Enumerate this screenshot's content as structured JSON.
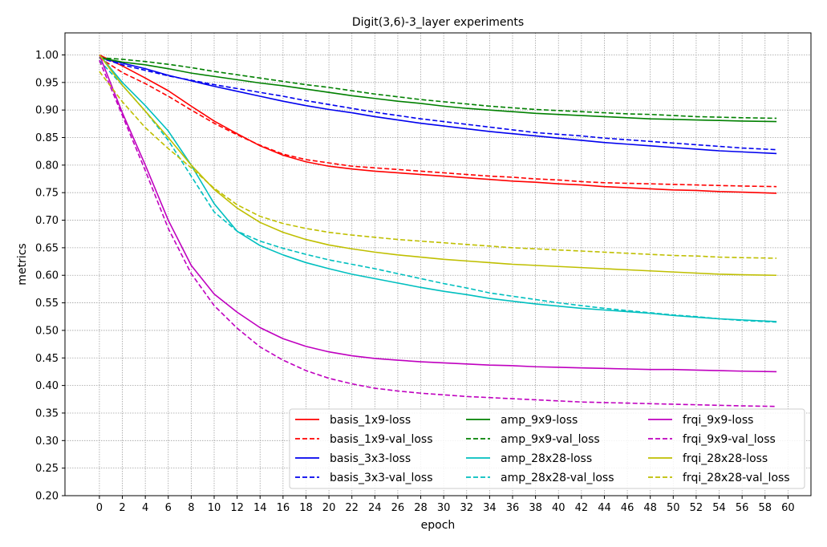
{
  "chart_data": {
    "type": "line",
    "title": "Digit(3,6)-3_layer experiments",
    "xlabel": "epoch",
    "ylabel": "metrics",
    "xlim": [
      -3,
      62
    ],
    "ylim": [
      0.2,
      1.04
    ],
    "xticks": [
      0,
      2,
      4,
      6,
      8,
      10,
      12,
      14,
      16,
      18,
      20,
      22,
      24,
      26,
      28,
      30,
      32,
      34,
      36,
      38,
      40,
      42,
      44,
      46,
      48,
      50,
      52,
      54,
      56,
      58,
      60
    ],
    "yticks": [
      "0.20",
      "0.25",
      "0.30",
      "0.35",
      "0.40",
      "0.45",
      "0.50",
      "0.55",
      "0.60",
      "0.65",
      "0.70",
      "0.75",
      "0.80",
      "0.85",
      "0.90",
      "0.95",
      "1.00"
    ],
    "grid": true,
    "legend_position": "bottom-right",
    "x": [
      0,
      2,
      4,
      6,
      8,
      10,
      12,
      14,
      16,
      18,
      20,
      22,
      24,
      26,
      28,
      30,
      32,
      34,
      36,
      38,
      40,
      42,
      44,
      46,
      48,
      50,
      52,
      54,
      56,
      59
    ],
    "series": [
      {
        "name": "basis_1x9-loss",
        "color": "#ff0000",
        "dash": "solid",
        "values": [
          1.0,
          0.98,
          0.958,
          0.935,
          0.907,
          0.88,
          0.857,
          0.835,
          0.818,
          0.806,
          0.798,
          0.793,
          0.789,
          0.786,
          0.783,
          0.78,
          0.777,
          0.774,
          0.771,
          0.769,
          0.766,
          0.764,
          0.761,
          0.759,
          0.757,
          0.755,
          0.754,
          0.752,
          0.751,
          0.749
        ]
      },
      {
        "name": "basis_1x9-val_loss",
        "color": "#ff0000",
        "dash": "dashed",
        "values": [
          0.995,
          0.968,
          0.948,
          0.925,
          0.9,
          0.876,
          0.855,
          0.836,
          0.82,
          0.81,
          0.804,
          0.798,
          0.795,
          0.792,
          0.789,
          0.786,
          0.783,
          0.78,
          0.778,
          0.775,
          0.773,
          0.77,
          0.768,
          0.767,
          0.766,
          0.765,
          0.764,
          0.763,
          0.762,
          0.761
        ]
      },
      {
        "name": "basis_3x3-loss",
        "color": "#0000ee",
        "dash": "solid",
        "values": [
          0.995,
          0.985,
          0.975,
          0.963,
          0.953,
          0.943,
          0.934,
          0.925,
          0.916,
          0.908,
          0.901,
          0.895,
          0.888,
          0.882,
          0.876,
          0.871,
          0.866,
          0.861,
          0.857,
          0.853,
          0.849,
          0.845,
          0.841,
          0.838,
          0.835,
          0.832,
          0.829,
          0.826,
          0.824,
          0.821
        ]
      },
      {
        "name": "basis_3x3-val_loss",
        "color": "#0000ee",
        "dash": "dashed",
        "values": [
          0.995,
          0.982,
          0.972,
          0.962,
          0.954,
          0.946,
          0.939,
          0.932,
          0.925,
          0.917,
          0.91,
          0.903,
          0.896,
          0.89,
          0.884,
          0.879,
          0.874,
          0.869,
          0.864,
          0.859,
          0.856,
          0.853,
          0.849,
          0.846,
          0.843,
          0.84,
          0.837,
          0.834,
          0.831,
          0.828
        ]
      },
      {
        "name": "amp_9x9-loss",
        "color": "#008000",
        "dash": "solid",
        "values": [
          0.995,
          0.987,
          0.982,
          0.975,
          0.967,
          0.961,
          0.955,
          0.949,
          0.944,
          0.938,
          0.932,
          0.926,
          0.921,
          0.916,
          0.912,
          0.907,
          0.903,
          0.9,
          0.897,
          0.894,
          0.892,
          0.89,
          0.888,
          0.886,
          0.884,
          0.883,
          0.882,
          0.881,
          0.88,
          0.879
        ]
      },
      {
        "name": "amp_9x9-val_loss",
        "color": "#008000",
        "dash": "dashed",
        "values": [
          0.995,
          0.992,
          0.988,
          0.983,
          0.977,
          0.97,
          0.964,
          0.958,
          0.952,
          0.946,
          0.941,
          0.935,
          0.929,
          0.924,
          0.919,
          0.915,
          0.911,
          0.907,
          0.904,
          0.901,
          0.899,
          0.897,
          0.895,
          0.893,
          0.892,
          0.89,
          0.888,
          0.887,
          0.886,
          0.885
        ]
      },
      {
        "name": "amp_28x28-loss",
        "color": "#00bfbf",
        "dash": "solid",
        "values": [
          1.0,
          0.95,
          0.908,
          0.862,
          0.8,
          0.73,
          0.68,
          0.654,
          0.637,
          0.623,
          0.612,
          0.602,
          0.594,
          0.586,
          0.578,
          0.571,
          0.565,
          0.558,
          0.553,
          0.548,
          0.544,
          0.54,
          0.537,
          0.534,
          0.531,
          0.527,
          0.524,
          0.521,
          0.519,
          0.516
        ]
      },
      {
        "name": "amp_28x28-val_loss",
        "color": "#00bfbf",
        "dash": "dashed",
        "values": [
          0.99,
          0.945,
          0.898,
          0.845,
          0.78,
          0.715,
          0.68,
          0.662,
          0.649,
          0.638,
          0.628,
          0.62,
          0.612,
          0.603,
          0.594,
          0.585,
          0.577,
          0.568,
          0.562,
          0.556,
          0.55,
          0.545,
          0.54,
          0.536,
          0.532,
          0.528,
          0.525,
          0.521,
          0.518,
          0.515
        ]
      },
      {
        "name": "frqi_9x9-loss",
        "color": "#bf00bf",
        "dash": "solid",
        "values": [
          1.0,
          0.895,
          0.8,
          0.7,
          0.618,
          0.566,
          0.533,
          0.505,
          0.485,
          0.471,
          0.461,
          0.454,
          0.449,
          0.446,
          0.443,
          0.441,
          0.439,
          0.437,
          0.436,
          0.434,
          0.433,
          0.432,
          0.431,
          0.43,
          0.429,
          0.429,
          0.428,
          0.427,
          0.426,
          0.425
        ]
      },
      {
        "name": "frqi_9x9-val_loss",
        "color": "#bf00bf",
        "dash": "dashed",
        "values": [
          0.99,
          0.89,
          0.79,
          0.685,
          0.603,
          0.545,
          0.504,
          0.47,
          0.446,
          0.427,
          0.413,
          0.403,
          0.395,
          0.39,
          0.386,
          0.383,
          0.38,
          0.378,
          0.376,
          0.374,
          0.372,
          0.37,
          0.369,
          0.368,
          0.367,
          0.366,
          0.365,
          0.364,
          0.363,
          0.362
        ]
      },
      {
        "name": "frqi_28x28-loss",
        "color": "#bfbf00",
        "dash": "solid",
        "values": [
          1.0,
          0.945,
          0.898,
          0.85,
          0.8,
          0.756,
          0.722,
          0.696,
          0.678,
          0.665,
          0.655,
          0.648,
          0.642,
          0.637,
          0.633,
          0.629,
          0.626,
          0.623,
          0.62,
          0.618,
          0.616,
          0.614,
          0.612,
          0.61,
          0.608,
          0.606,
          0.604,
          0.602,
          0.601,
          0.6
        ]
      },
      {
        "name": "frqi_28x28-val_loss",
        "color": "#bfbf00",
        "dash": "dashed",
        "values": [
          0.97,
          0.915,
          0.868,
          0.83,
          0.795,
          0.758,
          0.728,
          0.707,
          0.694,
          0.685,
          0.678,
          0.673,
          0.669,
          0.665,
          0.662,
          0.659,
          0.656,
          0.653,
          0.65,
          0.648,
          0.646,
          0.644,
          0.642,
          0.64,
          0.638,
          0.636,
          0.635,
          0.633,
          0.632,
          0.631
        ]
      }
    ]
  }
}
